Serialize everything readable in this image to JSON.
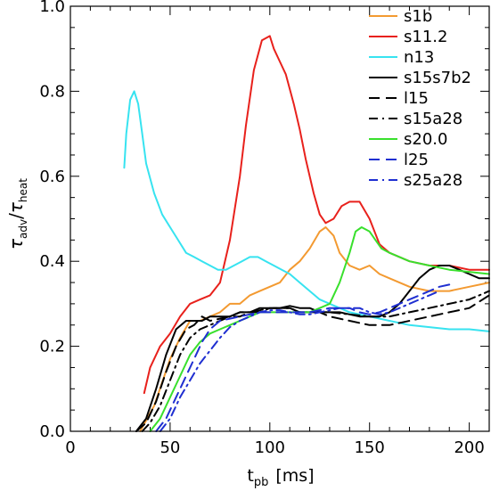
{
  "chart_data": {
    "type": "line",
    "xlabel": "t",
    "xlabel_sub": "pb",
    "xlabel_unit": "[ms]",
    "ylabel_sym": "τ",
    "ylabel_sub_num": "adv",
    "ylabel_sub_den": "heat",
    "xlim": [
      0,
      210
    ],
    "ylim": [
      0,
      1.0
    ],
    "xticks": [
      0,
      50,
      100,
      150,
      200
    ],
    "xtick_labels": [
      "0",
      "50",
      "100",
      "150",
      "200"
    ],
    "yticks": [
      0.0,
      0.2,
      0.4,
      0.6,
      0.8,
      1.0
    ],
    "ytick_labels": [
      "0.0",
      "0.2",
      "0.4",
      "0.6",
      "0.8",
      "1.0"
    ],
    "legend_position": "top-right",
    "grid": false,
    "series": [
      {
        "name": "s1b",
        "color": "#f39a31",
        "dash": "solid",
        "x": [
          35,
          42,
          50,
          55,
          60,
          65,
          70,
          75,
          80,
          85,
          90,
          95,
          100,
          105,
          110,
          115,
          120,
          125,
          128,
          132,
          135,
          140,
          145,
          150,
          155,
          160,
          170,
          180,
          190,
          200,
          210
        ],
        "y": [
          0.0,
          0.06,
          0.17,
          0.22,
          0.26,
          0.26,
          0.27,
          0.28,
          0.3,
          0.3,
          0.32,
          0.33,
          0.34,
          0.35,
          0.38,
          0.4,
          0.43,
          0.47,
          0.48,
          0.46,
          0.42,
          0.39,
          0.38,
          0.39,
          0.37,
          0.36,
          0.34,
          0.33,
          0.33,
          0.34,
          0.35
        ]
      },
      {
        "name": "s11.2",
        "color": "#e8211c",
        "dash": "solid",
        "x": [
          37,
          40,
          45,
          50,
          55,
          60,
          65,
          70,
          75,
          80,
          85,
          88,
          92,
          96,
          100,
          102,
          105,
          108,
          112,
          115,
          118,
          122,
          125,
          128,
          132,
          136,
          140,
          145,
          150,
          155,
          160,
          170,
          180,
          190,
          200,
          210
        ],
        "y": [
          0.09,
          0.15,
          0.2,
          0.23,
          0.27,
          0.3,
          0.31,
          0.32,
          0.35,
          0.45,
          0.6,
          0.72,
          0.85,
          0.92,
          0.93,
          0.9,
          0.87,
          0.84,
          0.77,
          0.71,
          0.64,
          0.56,
          0.51,
          0.49,
          0.5,
          0.53,
          0.54,
          0.54,
          0.5,
          0.44,
          0.42,
          0.4,
          0.39,
          0.39,
          0.38,
          0.38
        ]
      },
      {
        "name": "n13",
        "color": "#37e3f0",
        "dash": "solid",
        "x": [
          27,
          28,
          30,
          32,
          34,
          36,
          38,
          42,
          46,
          50,
          54,
          58,
          62,
          66,
          70,
          74,
          78,
          82,
          86,
          90,
          94,
          98,
          102,
          106,
          110,
          115,
          120,
          125,
          130,
          140,
          150,
          160,
          170,
          180,
          190,
          200,
          210
        ],
        "y": [
          0.62,
          0.7,
          0.78,
          0.8,
          0.77,
          0.7,
          0.63,
          0.56,
          0.51,
          0.48,
          0.45,
          0.42,
          0.41,
          0.4,
          0.39,
          0.38,
          0.38,
          0.39,
          0.4,
          0.41,
          0.41,
          0.4,
          0.39,
          0.38,
          0.37,
          0.35,
          0.33,
          0.31,
          0.3,
          0.28,
          0.27,
          0.26,
          0.25,
          0.245,
          0.24,
          0.24,
          0.235
        ]
      },
      {
        "name": "s15s7b2",
        "color": "#000000",
        "dash": "solid",
        "x": [
          33,
          38,
          43,
          48,
          53,
          58,
          62,
          66,
          70,
          75,
          80,
          85,
          90,
          95,
          100,
          105,
          110,
          115,
          120,
          125,
          130,
          135,
          140,
          145,
          150,
          155,
          160,
          165,
          170,
          175,
          180,
          185,
          190,
          195,
          200,
          205,
          210
        ],
        "y": [
          0.0,
          0.03,
          0.1,
          0.18,
          0.24,
          0.26,
          0.26,
          0.26,
          0.27,
          0.27,
          0.27,
          0.28,
          0.28,
          0.29,
          0.29,
          0.29,
          0.295,
          0.29,
          0.29,
          0.28,
          0.28,
          0.28,
          0.275,
          0.27,
          0.27,
          0.27,
          0.28,
          0.3,
          0.33,
          0.36,
          0.38,
          0.39,
          0.39,
          0.38,
          0.37,
          0.36,
          0.36
        ]
      },
      {
        "name": "l15",
        "color": "#000000",
        "dash": "dash",
        "x": [
          33,
          38,
          43,
          48,
          53,
          58,
          62,
          66,
          70,
          75,
          80,
          85,
          90,
          95,
          100,
          105,
          110,
          115,
          120,
          125,
          130,
          140,
          150,
          160,
          170,
          180,
          190,
          200,
          210
        ],
        "y": [
          0.0,
          0.02,
          0.07,
          0.14,
          0.2,
          0.24,
          0.25,
          0.27,
          0.26,
          0.265,
          0.27,
          0.27,
          0.28,
          0.28,
          0.29,
          0.29,
          0.29,
          0.28,
          0.28,
          0.28,
          0.27,
          0.26,
          0.25,
          0.25,
          0.26,
          0.27,
          0.28,
          0.29,
          0.32
        ]
      },
      {
        "name": "s15a28",
        "color": "#000000",
        "dash": "dashdot",
        "x": [
          36,
          40,
          45,
          50,
          55,
          60,
          65,
          70,
          75,
          80,
          85,
          90,
          95,
          100,
          105,
          110,
          115,
          120,
          125,
          130,
          140,
          150,
          160,
          170,
          180,
          190,
          200,
          205,
          210
        ],
        "y": [
          0.0,
          0.02,
          0.06,
          0.12,
          0.18,
          0.22,
          0.24,
          0.25,
          0.26,
          0.27,
          0.28,
          0.28,
          0.285,
          0.29,
          0.29,
          0.29,
          0.28,
          0.28,
          0.28,
          0.28,
          0.275,
          0.27,
          0.27,
          0.28,
          0.29,
          0.3,
          0.31,
          0.32,
          0.33
        ]
      },
      {
        "name": "s20.0",
        "color": "#39e02d",
        "dash": "solid",
        "x": [
          40,
          45,
          50,
          55,
          60,
          65,
          70,
          75,
          80,
          85,
          90,
          95,
          100,
          105,
          110,
          115,
          120,
          125,
          130,
          135,
          140,
          143,
          146,
          150,
          153,
          156,
          160,
          165,
          170,
          180,
          190,
          200,
          210
        ],
        "y": [
          0.0,
          0.03,
          0.08,
          0.13,
          0.18,
          0.21,
          0.23,
          0.24,
          0.25,
          0.26,
          0.27,
          0.28,
          0.28,
          0.28,
          0.28,
          0.28,
          0.28,
          0.29,
          0.3,
          0.35,
          0.42,
          0.47,
          0.48,
          0.47,
          0.45,
          0.43,
          0.42,
          0.41,
          0.4,
          0.39,
          0.38,
          0.375,
          0.37
        ]
      },
      {
        "name": "l25",
        "color": "#1f2fd1",
        "dash": "dash",
        "x": [
          43,
          48,
          53,
          58,
          62,
          66,
          70,
          75,
          80,
          85,
          90,
          95,
          100,
          105,
          110,
          115,
          120,
          125,
          130,
          135,
          140,
          145,
          150,
          155,
          160,
          165,
          170,
          175,
          180,
          185,
          190
        ],
        "y": [
          0.0,
          0.03,
          0.08,
          0.13,
          0.17,
          0.21,
          0.24,
          0.26,
          0.265,
          0.27,
          0.275,
          0.28,
          0.28,
          0.28,
          0.28,
          0.28,
          0.28,
          0.285,
          0.29,
          0.29,
          0.29,
          0.28,
          0.275,
          0.28,
          0.29,
          0.3,
          0.31,
          0.32,
          0.33,
          0.34,
          0.345
        ]
      },
      {
        "name": "s25a28",
        "color": "#1f2fd1",
        "dash": "dashdot",
        "x": [
          45,
          50,
          55,
          60,
          65,
          70,
          75,
          80,
          85,
          90,
          95,
          100,
          105,
          110,
          115,
          120,
          125,
          130,
          135,
          140,
          145,
          150,
          155,
          160,
          165,
          170,
          175,
          180,
          185
        ],
        "y": [
          0.0,
          0.03,
          0.08,
          0.12,
          0.16,
          0.19,
          0.22,
          0.245,
          0.26,
          0.27,
          0.28,
          0.285,
          0.285,
          0.28,
          0.275,
          0.275,
          0.28,
          0.285,
          0.29,
          0.29,
          0.29,
          0.28,
          0.275,
          0.28,
          0.29,
          0.3,
          0.31,
          0.32,
          0.33
        ]
      }
    ]
  }
}
